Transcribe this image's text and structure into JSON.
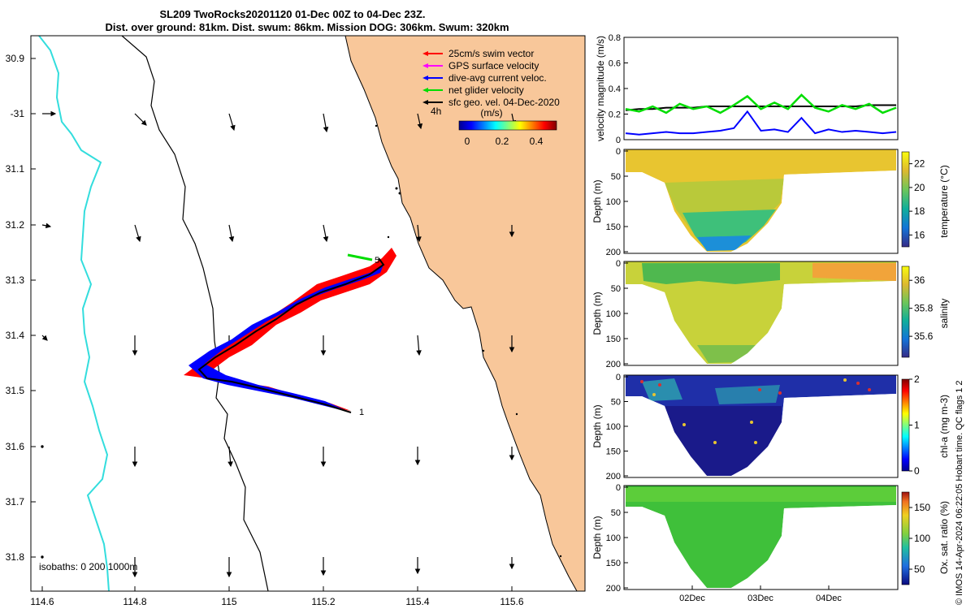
{
  "title": {
    "line1": "SL209 TwoRocks20201120 01-Dec 00Z to 04-Dec 23Z.",
    "line2": "Dist. over ground: 81km. Dist. swum: 86km. Mission DOG: 306km. Swum: 320km"
  },
  "colors": {
    "land": "#f8c79a",
    "swim_vector": "#ff0000",
    "gps_surface": "#ff00ff",
    "dive_avg": "#0000ff",
    "net_glider": "#00dd00",
    "sfc_geo": "#000000",
    "isobath_200": "#000000",
    "isobath_1000": "#33dddd"
  },
  "map": {
    "lon_ticks": [
      "114.6",
      "114.8",
      "115",
      "115.2",
      "115.4",
      "115.6"
    ],
    "lat_ticks": [
      "30.9",
      "-31",
      "31.1",
      "31.2",
      "31.3",
      "31.4",
      "31.5",
      "31.6",
      "31.7",
      "31.8"
    ],
    "legend": [
      {
        "label": "25cm/s swim vector",
        "color": "#ff0000"
      },
      {
        "label": "GPS surface velocity",
        "color": "#ff00ff"
      },
      {
        "label": "dive-avg current veloc.",
        "color": "#0000ff"
      },
      {
        "label": "net glider velocity",
        "color": "#00dd00"
      },
      {
        "label": "sfc geo. vel. 04-Dec-2020",
        "color": "#000000"
      }
    ],
    "time_label": "4h",
    "colorbar_title": "(m/s)",
    "colorbar_ticks": [
      "0",
      "0.2",
      "0.4"
    ],
    "track_labels": [
      "1",
      "5"
    ],
    "isobaths_text": "isobaths: 0   200 1000m"
  },
  "chart_data": [
    {
      "type": "line",
      "ylabel": "velocity magnitude (m/s)",
      "ylim": [
        0,
        0.8
      ],
      "yticks": [
        "0",
        "0.2",
        "0.4",
        "0.6",
        "0.8"
      ],
      "series": [
        {
          "color": "#000000",
          "values": [
            0.23,
            0.24,
            0.24,
            0.25,
            0.25,
            0.25,
            0.26,
            0.26,
            0.26,
            0.26,
            0.26,
            0.26,
            0.26,
            0.26,
            0.26,
            0.26,
            0.26,
            0.26,
            0.27,
            0.27,
            0.27
          ]
        },
        {
          "color": "#00dd00",
          "values": [
            0.24,
            0.22,
            0.26,
            0.21,
            0.28,
            0.24,
            0.26,
            0.21,
            0.27,
            0.34,
            0.24,
            0.29,
            0.24,
            0.35,
            0.25,
            0.22,
            0.27,
            0.24,
            0.28,
            0.21,
            0.25
          ]
        },
        {
          "color": "#0000ff",
          "values": [
            0.05,
            0.04,
            0.05,
            0.06,
            0.05,
            0.05,
            0.06,
            0.07,
            0.09,
            0.22,
            0.07,
            0.08,
            0.06,
            0.17,
            0.05,
            0.08,
            0.06,
            0.07,
            0.06,
            0.05,
            0.06
          ]
        }
      ]
    },
    {
      "type": "heatmap",
      "ylabel": "Depth (m)",
      "cbar_label": "temperature (°C)",
      "yticks": [
        "0",
        "50",
        "100",
        "150",
        "200"
      ],
      "cbar_ticks": [
        "16",
        "18",
        "20",
        "22"
      ],
      "range": [
        15,
        23
      ]
    },
    {
      "type": "heatmap",
      "ylabel": "Depth (m)",
      "cbar_label": "salinity",
      "yticks": [
        "0",
        "50",
        "100",
        "150",
        "200"
      ],
      "cbar_ticks": [
        "35.6",
        "35.8",
        "36"
      ],
      "range": [
        35.45,
        36.1
      ]
    },
    {
      "type": "heatmap",
      "ylabel": "Depth (m)",
      "cbar_label": "chl-a (mg m-3)",
      "yticks": [
        "0",
        "50",
        "100",
        "150",
        "200"
      ],
      "cbar_ticks": [
        "0",
        "1",
        "2"
      ],
      "range": [
        0,
        2
      ]
    },
    {
      "type": "heatmap",
      "ylabel": "Depth (m)",
      "cbar_label": "Ox. sat. ratio (%)",
      "yticks": [
        "0",
        "50",
        "100",
        "150",
        "200"
      ],
      "cbar_ticks": [
        "50",
        "100",
        "150"
      ],
      "range": [
        25,
        175
      ],
      "xticks": [
        "02Dec",
        "03Dec",
        "04Dec"
      ]
    }
  ],
  "footer": "© IMOS 14-Apr-2024 06:22:05 Hobart time. QC flags 1  2"
}
